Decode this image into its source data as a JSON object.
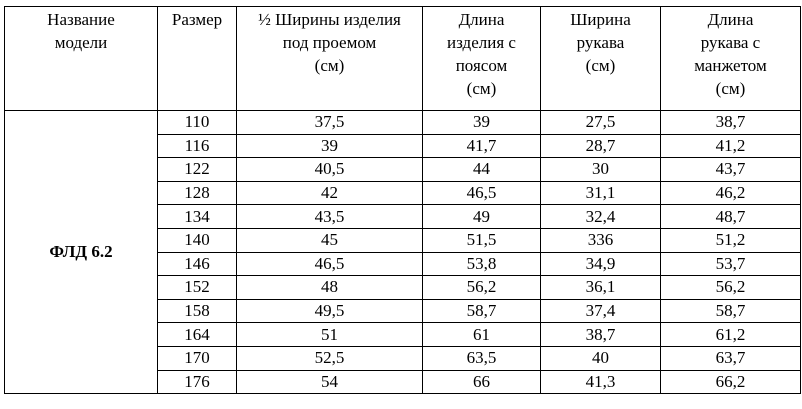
{
  "table": {
    "header": [
      [
        "Название",
        "модели"
      ],
      [
        "Размер"
      ],
      [
        "½ Ширины изделия",
        "под проемом",
        "(см)"
      ],
      [
        "Длина",
        "изделия с",
        "поясом",
        "(см)"
      ],
      [
        "Ширина",
        "рукава",
        "(см)"
      ],
      [
        "Длина",
        "рукава с",
        "манжетом",
        "(см)"
      ]
    ],
    "model": "ФЛД 6.2",
    "rows": [
      [
        "110",
        "37,5",
        "39",
        "27,5",
        "38,7"
      ],
      [
        "116",
        "39",
        "41,7",
        "28,7",
        "41,2"
      ],
      [
        "122",
        "40,5",
        "44",
        "30",
        "43,7"
      ],
      [
        "128",
        "42",
        "46,5",
        "31,1",
        "46,2"
      ],
      [
        "134",
        "43,5",
        "49",
        "32,4",
        "48,7"
      ],
      [
        "140",
        "45",
        "51,5",
        "336",
        "51,2"
      ],
      [
        "146",
        "46,5",
        "53,8",
        "34,9",
        "53,7"
      ],
      [
        "152",
        "48",
        "56,2",
        "36,1",
        "56,2"
      ],
      [
        "158",
        "49,5",
        "58,7",
        "37,4",
        "58,7"
      ],
      [
        "164",
        "51",
        "61",
        "38,7",
        "61,2"
      ],
      [
        "170",
        "52,5",
        "63,5",
        "40",
        "63,7"
      ],
      [
        "176",
        "54",
        "66",
        "41,3",
        "66,2"
      ]
    ]
  }
}
